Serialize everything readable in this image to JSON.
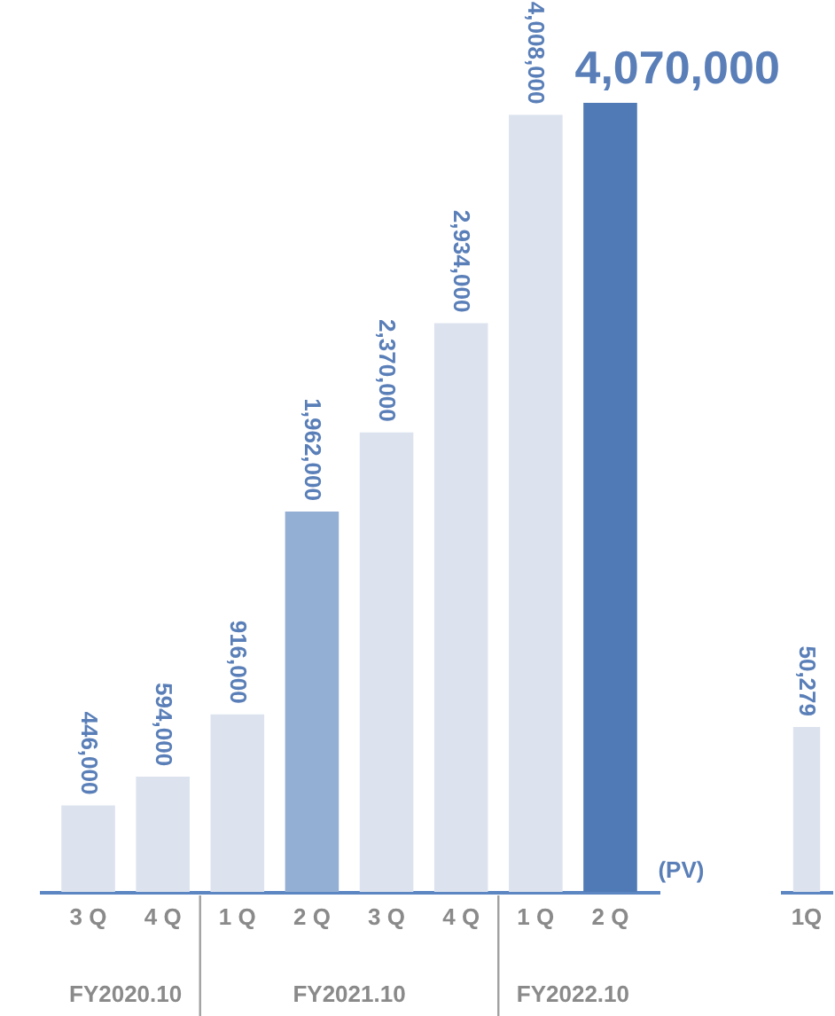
{
  "chart_data": [
    {
      "type": "bar",
      "categories": [
        "3 Q",
        "4 Q",
        "1 Q",
        "2 Q",
        "3 Q",
        "4 Q",
        "1 Q",
        "2 Q"
      ],
      "values": [
        446000,
        594000,
        916000,
        1962000,
        2370000,
        2934000,
        4008000,
        4070000
      ],
      "colors": [
        "#dce3ef",
        "#dce3ef",
        "#dce3ef",
        "#94afd4",
        "#dce3ef",
        "#dce3ef",
        "#dce3ef",
        "#4f7ab5"
      ],
      "value_labels": [
        "446,000",
        "594,000",
        "916,000",
        "1,962,000",
        "2,370,000",
        "2,934,000",
        "4,008,000",
        "4,070,000"
      ],
      "annotations": [
        "(PV)",
        "FY2020.10",
        "FY2021.10",
        "FY2022.10"
      ]
    },
    {
      "type": "bar",
      "categories": [
        "1Q"
      ],
      "values": [
        50279
      ],
      "colors": [
        "#dce3ef"
      ],
      "value_labels": [
        "50,279"
      ]
    }
  ]
}
